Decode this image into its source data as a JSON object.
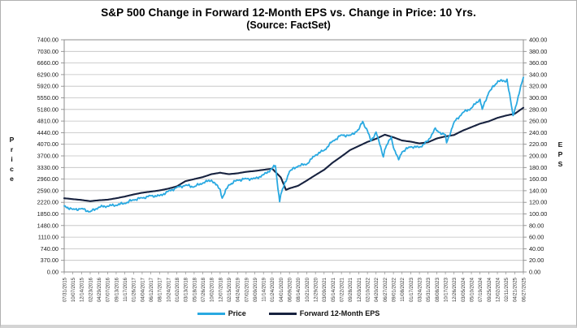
{
  "title": "S&P 500 Change in Forward 12-Month EPS vs. Change in Price: 10 Yrs.",
  "subtitle": "(Source: FactSet)",
  "left_axis": {
    "title": "Price",
    "min": 0,
    "max": 7400,
    "step": 370,
    "tick_labels": [
      "7400.00",
      "7030.00",
      "6660.00",
      "6290.00",
      "5920.00",
      "5550.00",
      "5180.00",
      "4810.00",
      "4440.00",
      "4070.00",
      "3700.00",
      "3330.00",
      "2960.00",
      "2590.00",
      "2220.00",
      "1850.00",
      "1480.00",
      "1110.00",
      "740.00",
      "370.00",
      "0.00"
    ]
  },
  "right_axis": {
    "title": "EPS",
    "min": 0,
    "max": 400,
    "step": 20,
    "tick_labels": [
      "400.00",
      "380.00",
      "360.00",
      "340.00",
      "320.00",
      "300.00",
      "280.00",
      "260.00",
      "240.00",
      "220.00",
      "200.00",
      "180.00",
      "160.00",
      "140.00",
      "120.00",
      "100.00",
      "80.00",
      "60.00",
      "40.00",
      "20.00",
      "0.00"
    ]
  },
  "legend": {
    "items": [
      {
        "label": "Price",
        "color": "#29a9e1"
      },
      {
        "label": "Forward 12-Month EPS",
        "color": "#17223f"
      }
    ]
  },
  "chart_data": {
    "type": "line",
    "title": "S&P 500 Change in Forward 12-Month EPS vs. Change in Price: 10 Yrs.",
    "subtitle": "(Source: FactSet)",
    "grid": "horizontal",
    "legend_position": "bottom",
    "x_labels": [
      "07/31/2015",
      "10/07/2015",
      "12/14/2015",
      "02/23/2016",
      "04/29/2016",
      "07/07/2016",
      "09/13/2016",
      "11/17/2016",
      "01/26/2017",
      "04/04/2017",
      "06/12/2017",
      "08/17/2017",
      "10/24/2017",
      "01/02/2018",
      "03/13/2018",
      "05/18/2018",
      "07/26/2018",
      "10/02/2018",
      "12/07/2018",
      "02/15/2019",
      "04/24/2019",
      "07/02/2019",
      "09/09/2019",
      "11/14/2019",
      "01/24/2020",
      "04/01/2020",
      "06/09/2020",
      "08/14/2020",
      "10/21/2020",
      "12/29/2020",
      "03/09/2021",
      "05/14/2021",
      "07/22/2021",
      "09/28/2021",
      "12/03/2021",
      "02/10/2022",
      "04/20/2022",
      "06/27/2022",
      "09/01/2022",
      "11/08/2022",
      "01/17/2023",
      "03/24/2023",
      "05/31/2023",
      "08/08/2023",
      "10/17/2023",
      "12/26/2023",
      "03/05/2024",
      "05/10/2024",
      "07/19/2024",
      "09/25/2024",
      "12/02/2024",
      "02/11/2025",
      "04/21/2025",
      "06/27/2025"
    ],
    "series": [
      {
        "name": "Price",
        "axis": "left",
        "color": "#29a9e1",
        "values": [
          2104,
          1996,
          2022,
          1921,
          2065,
          2098,
          2127,
          2187,
          2297,
          2360,
          2429,
          2430,
          2569,
          2696,
          2765,
          2713,
          2837,
          2923,
          2633,
          2776,
          2927,
          2973,
          2978,
          3097,
          3295,
          2470,
          3207,
          3373,
          3435,
          3727,
          3876,
          4174,
          4367,
          4353,
          4538,
          4504,
          4459,
          3900,
          3967,
          3828,
          3991,
          3971,
          4180,
          4499,
          4373,
          4775,
          5078,
          5223,
          5505,
          5722,
          6047,
          6069,
          5158,
          6200
        ],
        "intra_label_extremes": [
          {
            "pos": 18.24,
            "value": 2351
          },
          {
            "pos": 24.38,
            "value": 3386
          },
          {
            "pos": 24.87,
            "value": 2237
          },
          {
            "pos": 34.45,
            "value": 4797
          },
          {
            "pos": 35.38,
            "value": 4171
          },
          {
            "pos": 36.84,
            "value": 3667
          },
          {
            "pos": 37.76,
            "value": 4305
          },
          {
            "pos": 38.6,
            "value": 3577
          },
          {
            "pos": 42.83,
            "value": 4589
          },
          {
            "pos": 44.14,
            "value": 4117
          },
          {
            "pos": 48.25,
            "value": 5186
          },
          {
            "pos": 50.06,
            "value": 6090
          },
          {
            "pos": 51.11,
            "value": 6144
          },
          {
            "pos": 51.81,
            "value": 4983
          }
        ]
      },
      {
        "name": "Forward 12-Month EPS",
        "axis": "right",
        "color": "#17223f",
        "values": [
          127,
          125.5,
          124,
          122,
          123.5,
          124.5,
          127,
          130,
          133.5,
          136.5,
          138.5,
          140.5,
          143.5,
          147.5,
          156.5,
          160,
          163.5,
          168.5,
          171,
          168.5,
          170,
          172.5,
          174,
          176,
          178,
          163,
          144,
          148.5,
          157.5,
          167,
          176,
          188.5,
          199,
          210,
          217,
          224,
          229.5,
          236.5,
          232,
          226.5,
          224.5,
          221.5,
          223.5,
          230,
          233.5,
          236,
          243.5,
          249.5,
          255.5,
          259.5,
          265.5,
          269.5,
          272.5,
          283
        ],
        "intra_label_extremes": [
          {
            "pos": 25.6,
            "value": 141.5
          }
        ]
      }
    ]
  }
}
